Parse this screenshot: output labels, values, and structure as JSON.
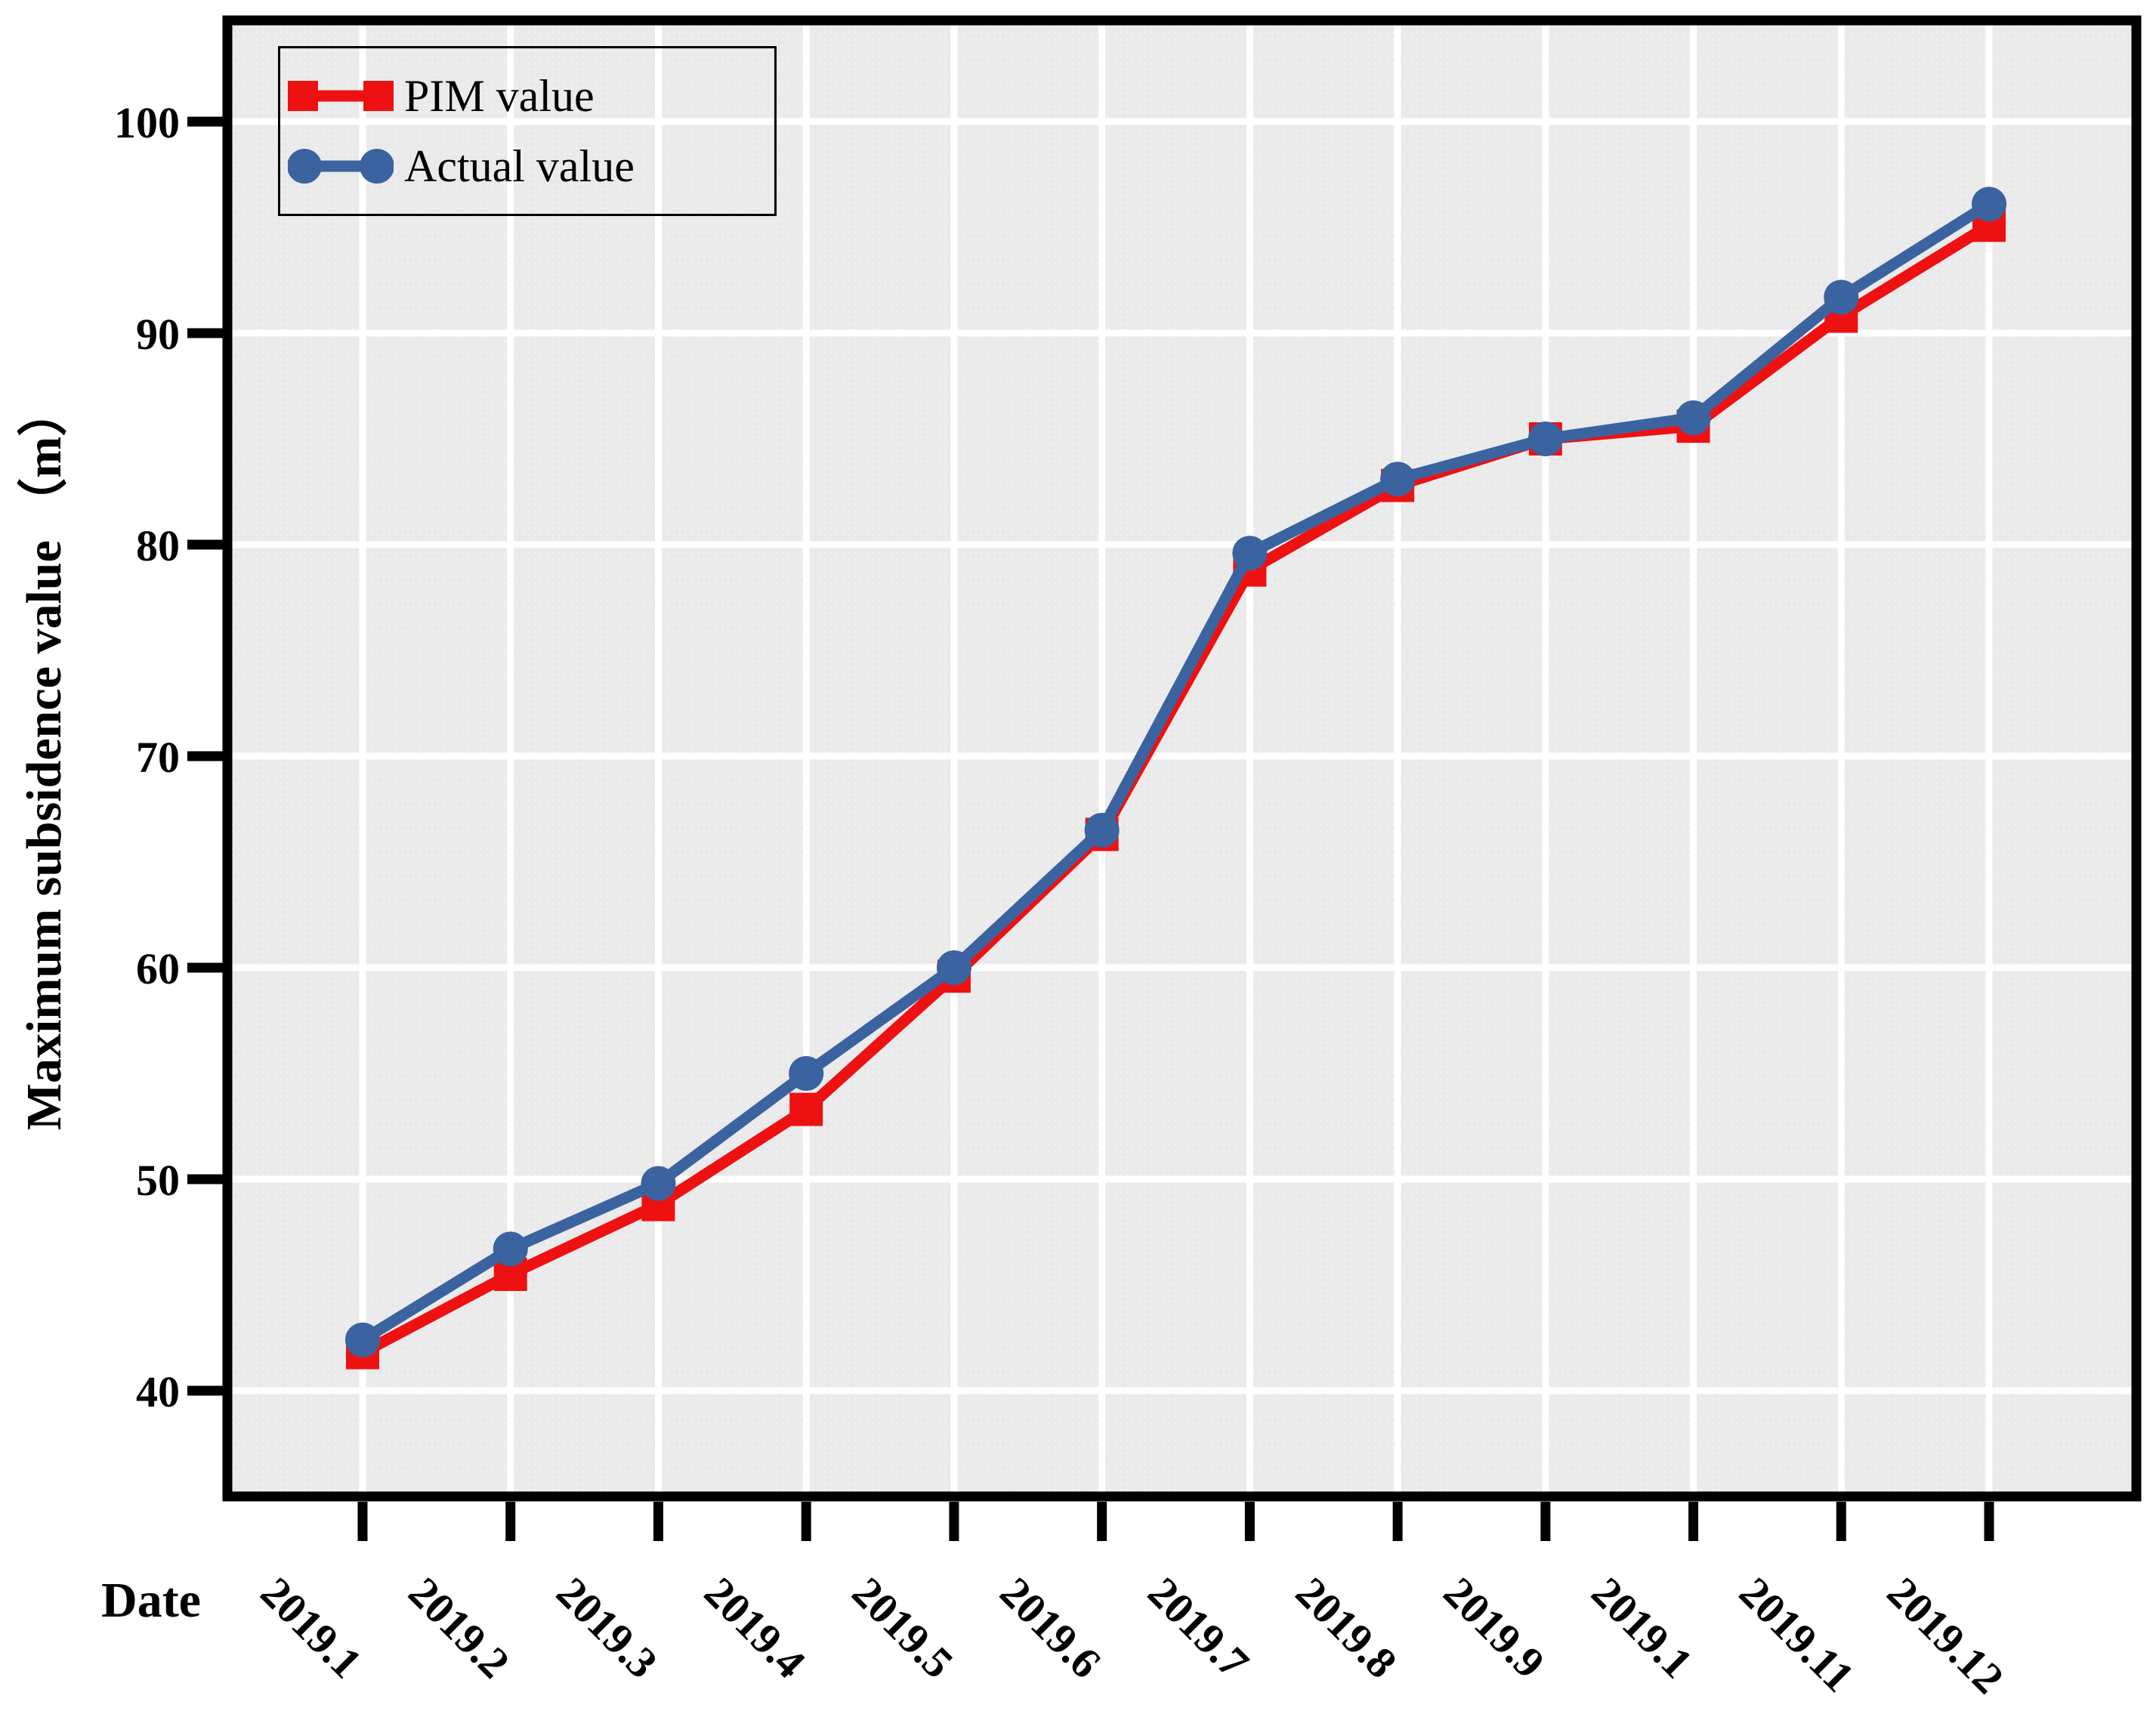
{
  "figure": {
    "x_axis_title": "Date",
    "y_axis_title": "Maximum subsidence value （m）"
  },
  "legend": {
    "position": "upper-left",
    "items": [
      {
        "label": "PIM value",
        "marker": "square",
        "color": "#ee1111"
      },
      {
        "label": "Actual value",
        "marker": "circle",
        "color": "#3a63a0"
      }
    ]
  },
  "chart_data": {
    "type": "line",
    "title": "",
    "xlabel": "Date",
    "ylabel": "Maximum subsidence value （m）",
    "categories": [
      "2019.1",
      "2019.2",
      "2019.3",
      "2019.4",
      "2019.5",
      "2019.6",
      "2019.7",
      "2019.8",
      "2019.9",
      "2019.1",
      "2019.11",
      "2019.12"
    ],
    "y_ticks": [
      40,
      50,
      60,
      70,
      80,
      90,
      100
    ],
    "ylim": [
      35,
      105
    ],
    "grid": true,
    "grid_color": "#ffffff",
    "plot_bg_color": "#ebebeb",
    "frame_color": "#000000",
    "legend_position": "upper-left",
    "series": [
      {
        "name": "PIM value",
        "marker": "square",
        "color": "#ee1111",
        "values": [
          41.8,
          45.5,
          48.8,
          53.3,
          59.6,
          66.3,
          78.8,
          82.8,
          85.0,
          85.6,
          90.8,
          95.1
        ]
      },
      {
        "name": "Actual value",
        "marker": "circle",
        "color": "#3a63a0",
        "values": [
          42.4,
          46.7,
          49.8,
          55.0,
          60.0,
          66.5,
          79.6,
          83.1,
          85.0,
          86.0,
          91.7,
          96.1
        ]
      }
    ]
  }
}
